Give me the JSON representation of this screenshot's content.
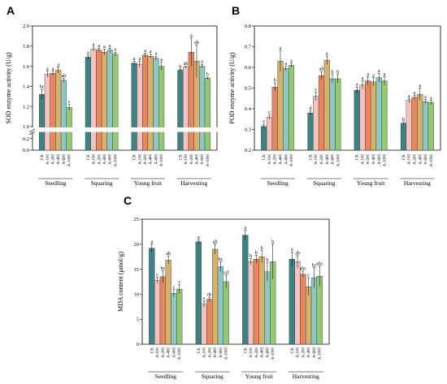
{
  "treatments": [
    "CK",
    "A-100",
    "A-200",
    "A-400",
    "A-600",
    "A-1000"
  ],
  "colors": [
    "#3d8383",
    "#f4c3c0",
    "#e8875e",
    "#d6b26d",
    "#8dc8c3",
    "#93c973"
  ],
  "chart_data": [
    {
      "type": "bar",
      "panel": "A",
      "ylabel": "SOD enzyme activity (U/g)",
      "categories": [
        "Seedling",
        "Squaring",
        "Young fruit",
        "Harvesting"
      ],
      "broken_axis": true,
      "ylim": [
        0.0,
        2.0
      ],
      "break": [
        0.3,
        1.0
      ],
      "yticks": [
        "0.0",
        "0.2",
        "1.0",
        "1.2",
        "1.4",
        "1.6",
        "1.8",
        "2.0"
      ],
      "series": [
        {
          "name": "CK",
          "values": [
            1.32,
            1.69,
            1.63,
            1.56
          ],
          "errors": [
            0.05,
            0.02,
            0.02,
            0.01
          ],
          "labels": [
            "bc",
            "a",
            "a",
            "b"
          ]
        },
        {
          "name": "A-100",
          "values": [
            1.52,
            1.77,
            1.62,
            1.59
          ],
          "errors": [
            0.03,
            0.02,
            0.03,
            0.01
          ],
          "labels": [
            "a",
            "a",
            "a",
            "ab"
          ]
        },
        {
          "name": "A-200",
          "values": [
            1.53,
            1.76,
            1.71,
            1.74
          ],
          "errors": [
            0.02,
            0.02,
            0.02,
            0.14
          ],
          "labels": [
            "a",
            "a",
            "a",
            "a"
          ]
        },
        {
          "name": "A-400",
          "values": [
            1.56,
            1.74,
            1.7,
            1.65
          ],
          "errors": [
            0.03,
            0.03,
            0.02,
            0.16
          ],
          "labels": [
            "a",
            "a",
            "a",
            "ab"
          ]
        },
        {
          "name": "A-600",
          "values": [
            1.46,
            1.76,
            1.68,
            1.6
          ],
          "errors": [
            0.02,
            0.02,
            0.02,
            0.02
          ],
          "labels": [
            "ab",
            "a",
            "a",
            "a"
          ]
        },
        {
          "name": "A-1000",
          "values": [
            1.19,
            1.72,
            1.6,
            1.48
          ],
          "errors": [
            0.03,
            0.02,
            0.04,
            0.01
          ],
          "labels": [
            "c",
            "a",
            "a",
            "b"
          ]
        }
      ]
    },
    {
      "type": "bar",
      "panel": "B",
      "ylabel": "POD enzyme activity (U/g)",
      "categories": [
        "Seedling",
        "Squaring",
        "Young fruit",
        "Harvesting"
      ],
      "ylim": [
        0.2,
        0.8
      ],
      "yticks": [
        "0.2",
        "0.3",
        "0.4",
        "0.5",
        "0.6",
        "0.7",
        "0.8"
      ],
      "series": [
        {
          "name": "CK",
          "values": [
            0.315,
            0.38,
            0.49,
            0.33
          ],
          "errors": [
            0.01,
            0.01,
            0.015,
            0.005
          ],
          "labels": [
            "e",
            "d",
            "a",
            "b"
          ]
        },
        {
          "name": "A-100",
          "values": [
            0.36,
            0.46,
            0.515,
            0.44
          ],
          "errors": [
            0.01,
            0.02,
            0.02,
            0.01
          ],
          "labels": [
            "c",
            "c",
            "a",
            "a"
          ]
        },
        {
          "name": "A-200",
          "values": [
            0.505,
            0.56,
            0.535,
            0.455
          ],
          "errors": [
            0.02,
            0.02,
            0.02,
            0.01
          ],
          "labels": [
            "b",
            "ab",
            "a",
            "a"
          ]
        },
        {
          "name": "A-400",
          "values": [
            0.63,
            0.635,
            0.53,
            0.47
          ],
          "errors": [
            0.05,
            0.02,
            0.02,
            0.03
          ],
          "labels": [
            "a",
            "a",
            "a",
            "a"
          ]
        },
        {
          "name": "A-600",
          "values": [
            0.595,
            0.545,
            0.55,
            0.435
          ],
          "errors": [
            0.01,
            0.02,
            0.02,
            0.01
          ],
          "labels": [
            "a",
            "b",
            "a",
            "a"
          ]
        },
        {
          "name": "A-1000",
          "values": [
            0.61,
            0.545,
            0.535,
            0.43
          ],
          "errors": [
            0.01,
            0.02,
            0.02,
            0.01
          ],
          "labels": [
            "a",
            "b",
            "a",
            "a"
          ]
        }
      ]
    },
    {
      "type": "bar",
      "panel": "C",
      "ylabel": "MDA content (μmol/g)",
      "categories": [
        "Seedling",
        "Squaring",
        "Young fruit",
        "Harvesting"
      ],
      "ylim": [
        0,
        25
      ],
      "yticks": [
        "0",
        "5",
        "10",
        "15",
        "20",
        "25"
      ],
      "series": [
        {
          "name": "CK",
          "values": [
            19.2,
            20.5,
            21.8,
            17.0
          ],
          "errors": [
            0.8,
            0.4,
            1.0,
            1.5
          ],
          "labels": [
            "a",
            "a",
            "a",
            "a"
          ]
        },
        {
          "name": "A-100",
          "values": [
            12.8,
            8.0,
            16.5,
            16.5
          ],
          "errors": [
            0.6,
            0.6,
            0.6,
            1.2
          ],
          "labels": [
            "c",
            "e",
            "b",
            "ab"
          ]
        },
        {
          "name": "A-200",
          "values": [
            13.5,
            9.0,
            17.0,
            14.0
          ],
          "errors": [
            1.2,
            0.4,
            0.8,
            0.6
          ],
          "labels": [
            "bc",
            "de",
            "b",
            "abc"
          ]
        },
        {
          "name": "A-400",
          "values": [
            16.8,
            19.0,
            17.5,
            11.5
          ],
          "errors": [
            0.8,
            1.0,
            1.2,
            1.8
          ],
          "labels": [
            "ab",
            "ab",
            "b",
            "c"
          ]
        },
        {
          "name": "A-600",
          "values": [
            10.2,
            15.5,
            14.5,
            13.3
          ],
          "errors": [
            0.7,
            1.0,
            1.8,
            2.0
          ],
          "labels": [
            "c",
            "bc",
            "b",
            "bc"
          ]
        },
        {
          "name": "A-1000",
          "values": [
            11.0,
            12.5,
            16.5,
            13.6
          ],
          "errors": [
            0.9,
            1.3,
            3.5,
            2.0
          ],
          "labels": [
            "c",
            "cd",
            "b",
            "abc"
          ]
        }
      ]
    }
  ]
}
